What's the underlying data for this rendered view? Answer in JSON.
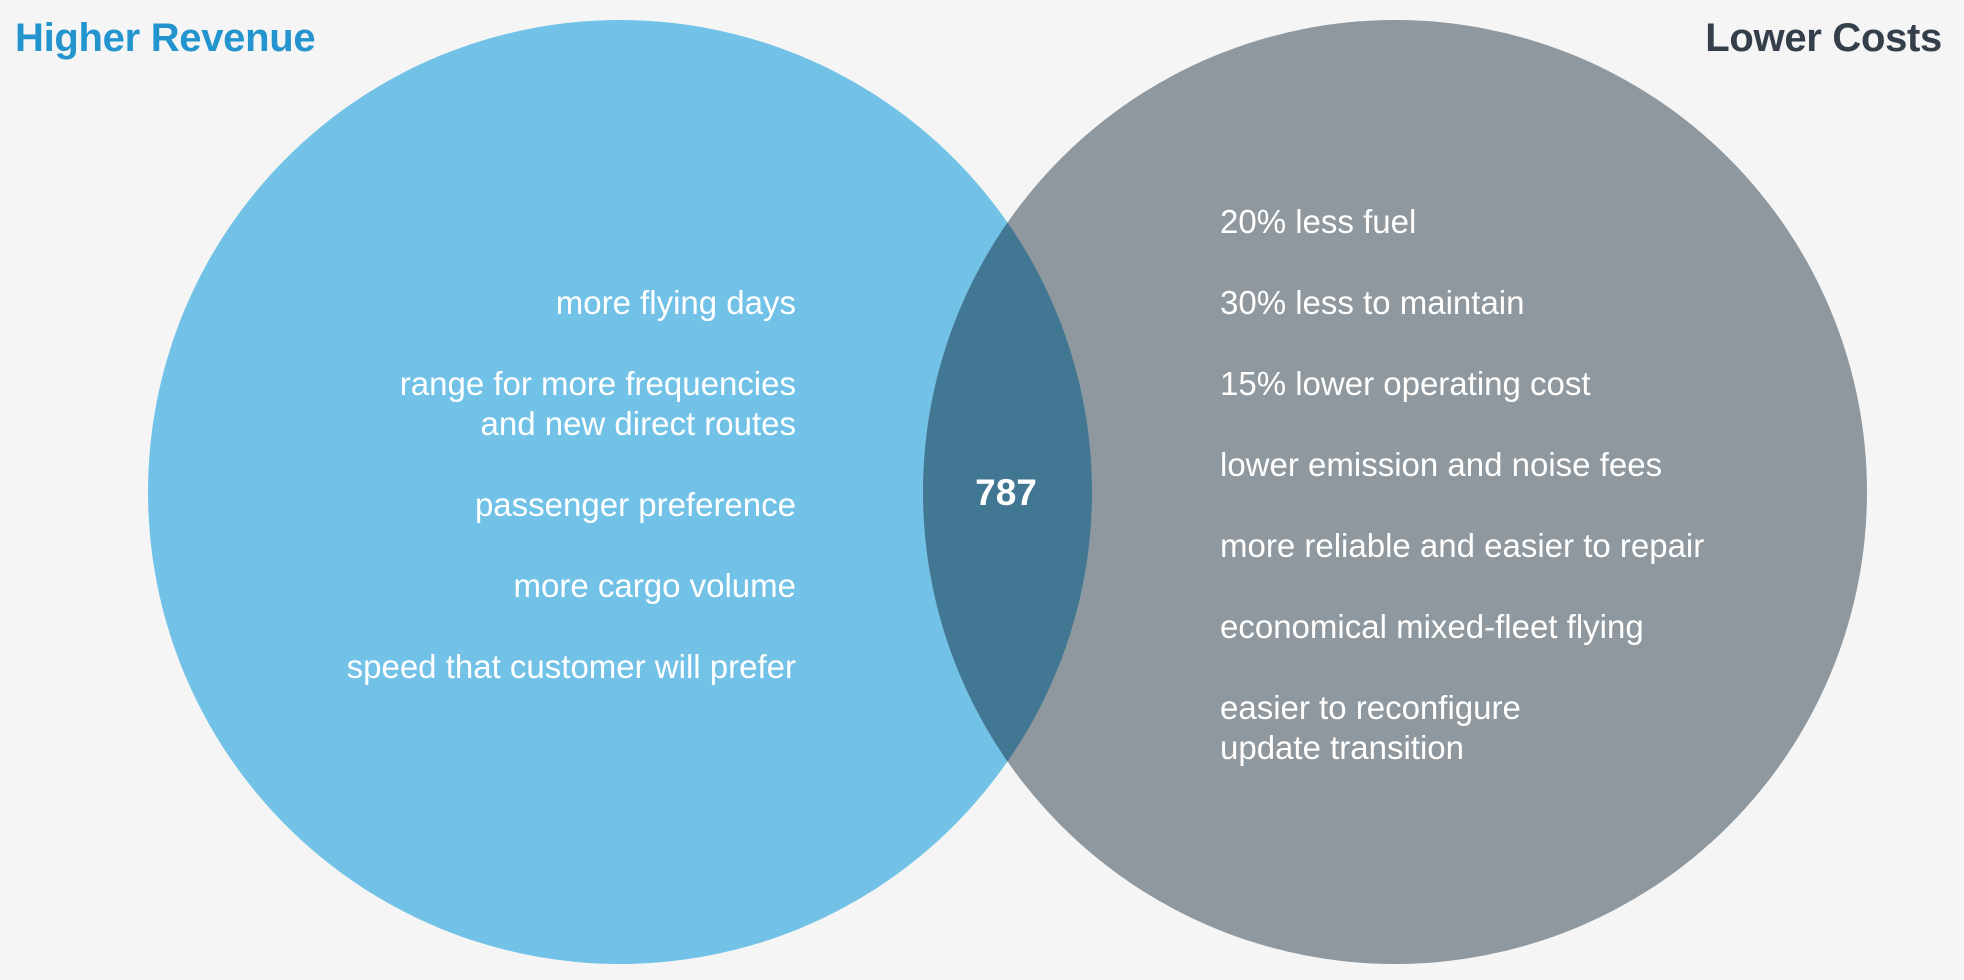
{
  "titles": {
    "left": "Higher Revenue",
    "right": "Lower Costs"
  },
  "center_label": "787",
  "left_items": [
    {
      "lines": [
        "more flying days"
      ]
    },
    {
      "lines": [
        "range for more frequencies",
        "and new direct routes"
      ]
    },
    {
      "lines": [
        "passenger preference"
      ]
    },
    {
      "lines": [
        "more cargo volume"
      ]
    },
    {
      "lines": [
        "speed that customer will prefer"
      ]
    }
  ],
  "right_items": [
    {
      "lines": [
        "20% less fuel"
      ]
    },
    {
      "lines": [
        "30% less to maintain"
      ]
    },
    {
      "lines": [
        "15% lower operating cost"
      ]
    },
    {
      "lines": [
        "lower emission and noise fees"
      ]
    },
    {
      "lines": [
        "more reliable and easier to repair"
      ]
    },
    {
      "lines": [
        "economical mixed-fleet flying"
      ]
    },
    {
      "lines": [
        "easier to reconfigure",
        "update transition"
      ]
    }
  ],
  "colors": {
    "background": "#f5f5f5",
    "left_circle": "#72c2e7",
    "right_circle": "#8f989f",
    "overlap": "#427794",
    "left_title": "#2494cf",
    "right_title": "#343f4b"
  }
}
